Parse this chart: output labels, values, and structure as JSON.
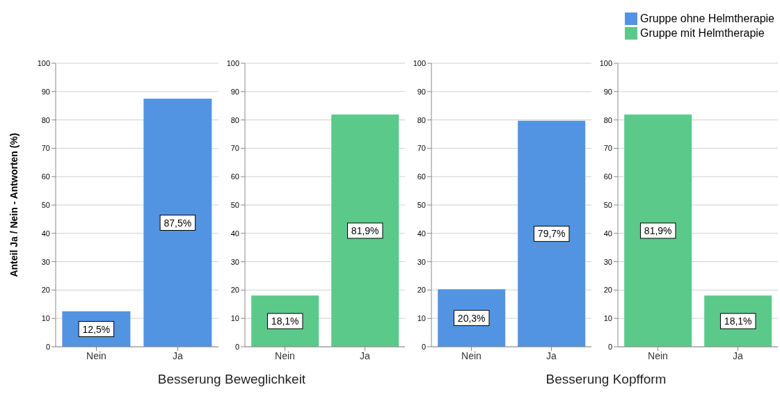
{
  "chart_data": [
    {
      "type": "bar",
      "categories": [
        "Nein",
        "Ja"
      ],
      "series": [
        {
          "name": "Gruppe ohne Helmtherapie",
          "color": "#5294e2",
          "values": [
            12.5,
            87.5
          ],
          "value_labels": [
            "12,5%",
            "87,5%"
          ]
        }
      ],
      "ylabel": "Anteil Ja / Nein - Antworten (%)",
      "xlabel": "Besserung Beweglichkeit",
      "ylim": [
        0,
        100
      ],
      "yticks": [
        0,
        10,
        20,
        30,
        40,
        50,
        60,
        70,
        80,
        90,
        100
      ],
      "grid": "y",
      "legend": "top right"
    },
    {
      "type": "bar",
      "categories": [
        "Nein",
        "Ja"
      ],
      "series": [
        {
          "name": "Gruppe mit Helmtherapie",
          "color": "#5bc98a",
          "values": [
            18.1,
            81.9
          ],
          "value_labels": [
            "18,1%",
            "81,9%"
          ]
        }
      ],
      "ylim": [
        0,
        100
      ],
      "yticks": [
        0,
        10,
        20,
        30,
        40,
        50,
        60,
        70,
        80,
        90,
        100
      ],
      "grid": "y",
      "legend": "top right"
    },
    {
      "type": "bar",
      "categories": [
        "Nein",
        "Ja"
      ],
      "series": [
        {
          "color": "#5294e2",
          "values": [
            20.3,
            79.7
          ],
          "value_labels": [
            "20,3%",
            "79,7%"
          ]
        }
      ],
      "xlabel": "Besserung Kopfform",
      "ylim": [
        0,
        100
      ],
      "yticks": [
        0,
        10,
        20,
        30,
        40,
        50,
        60,
        70,
        80,
        90,
        100
      ],
      "grid": "y"
    },
    {
      "type": "bar",
      "categories": [
        "Nein",
        "Ja"
      ],
      "series": [
        {
          "color": "#5bc98a",
          "values": [
            81.9,
            18.1
          ],
          "value_labels": [
            "81,9%",
            "18,1%"
          ]
        }
      ],
      "ylim": [
        0,
        100
      ],
      "yticks": [
        0,
        10,
        20,
        30,
        40,
        50,
        60,
        70,
        80,
        90,
        100
      ],
      "grid": "y"
    }
  ]
}
